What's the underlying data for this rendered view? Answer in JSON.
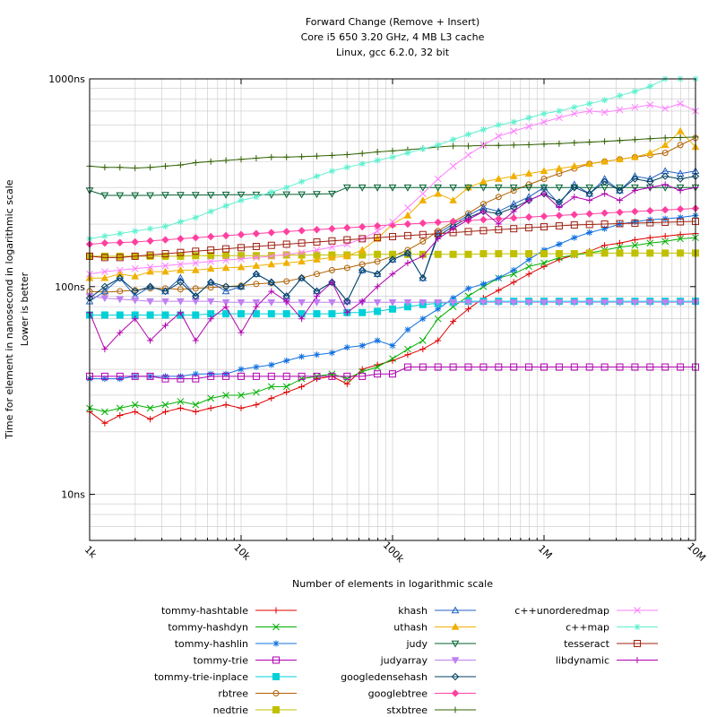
{
  "chart_data": {
    "type": "line",
    "title": [
      "Forward Change (Remove + Insert)",
      "Core i5 650 3.20 GHz, 4 MB L3 cache",
      "Linux, gcc 6.2.0, 32 bit"
    ],
    "xlabel": "Number of elements in logarithmic scale",
    "ylabel_lines": [
      "Time for element in nanosecond in logarithmic scale",
      "Lower is better"
    ],
    "x_scale": "log",
    "y_scale": "log",
    "xlim": [
      1000,
      10000000
    ],
    "ylim": [
      6,
      1000
    ],
    "x_ticks": [
      {
        "value": 1000,
        "label": "1k"
      },
      {
        "value": 10000,
        "label": "10k"
      },
      {
        "value": 100000,
        "label": "100k"
      },
      {
        "value": 1000000,
        "label": "1M"
      },
      {
        "value": 10000000,
        "label": "10M"
      }
    ],
    "y_ticks": [
      {
        "value": 10,
        "label": "10ns"
      },
      {
        "value": 100,
        "label": "100ns"
      },
      {
        "value": 1000,
        "label": "1000ns"
      }
    ],
    "grid": true,
    "legend_position": "bottom",
    "x_exponents": [
      3.0,
      3.1,
      3.2,
      3.3,
      3.4,
      3.5,
      3.6,
      3.7,
      3.8,
      3.9,
      4.0,
      4.1,
      4.2,
      4.3,
      4.4,
      4.5,
      4.6,
      4.7,
      4.8,
      4.9,
      5.0,
      5.1,
      5.2,
      5.3,
      5.4,
      5.5,
      5.6,
      5.7,
      5.8,
      5.9,
      6.0,
      6.1,
      6.2,
      6.3,
      6.4,
      6.5,
      6.6,
      6.7,
      6.8,
      6.9,
      7.0
    ],
    "series": [
      {
        "name": "tommy-hashtable",
        "color": "#e00000",
        "marker": "plus",
        "values": [
          25,
          22,
          24,
          25,
          23,
          25,
          26,
          25,
          26,
          27,
          26,
          27,
          29,
          31,
          33,
          36,
          37,
          34,
          40,
          42,
          44,
          47,
          50,
          55,
          68,
          78,
          88,
          96,
          105,
          115,
          125,
          135,
          142,
          148,
          158,
          162,
          168,
          172,
          175,
          178,
          180
        ]
      },
      {
        "name": "tommy-hashdyn",
        "color": "#00b000",
        "marker": "x",
        "values": [
          26,
          25,
          26,
          27,
          26,
          27,
          28,
          27,
          29,
          30,
          30,
          31,
          33,
          33,
          36,
          37,
          38,
          36,
          39,
          41,
          45,
          50,
          55,
          70,
          80,
          90,
          100,
          110,
          115,
          125,
          130,
          138,
          142,
          145,
          150,
          155,
          158,
          162,
          165,
          170,
          172
        ]
      },
      {
        "name": "tommy-hashlin",
        "color": "#1070e0",
        "marker": "star",
        "values": [
          36,
          36,
          36,
          37,
          37,
          37,
          37,
          38,
          38,
          38,
          40,
          41,
          42,
          44,
          46,
          47,
          48,
          51,
          52,
          55,
          52,
          62,
          70,
          78,
          88,
          98,
          103,
          110,
          120,
          135,
          150,
          160,
          172,
          182,
          190,
          200,
          205,
          210,
          212,
          215,
          220
        ]
      },
      {
        "name": "tommy-trie",
        "color": "#b000b0",
        "marker": "square-open",
        "values": [
          37,
          37,
          37,
          37,
          37,
          36,
          36,
          36,
          37,
          37,
          37,
          37,
          37,
          37,
          37,
          37,
          37,
          37,
          37,
          38,
          38,
          41,
          41,
          41,
          41,
          41,
          41,
          41,
          41,
          41,
          41,
          41,
          41,
          41,
          41,
          41,
          41,
          41,
          41,
          41,
          41
        ]
      },
      {
        "name": "tommy-trie-inplace",
        "color": "#00d0d8",
        "marker": "square",
        "values": [
          73,
          73,
          73,
          73,
          73,
          73,
          73,
          73,
          74,
          74,
          74,
          74,
          74,
          74,
          74,
          74,
          74,
          75,
          75,
          76,
          78,
          80,
          82,
          83,
          84,
          85,
          85,
          85,
          85,
          85,
          85,
          85,
          85,
          85,
          85,
          85,
          85,
          85,
          85,
          85,
          85
        ]
      },
      {
        "name": "rbtree",
        "color": "#b06000",
        "marker": "circle-open",
        "values": [
          95,
          94,
          95,
          96,
          98,
          98,
          97,
          98,
          99,
          100,
          101,
          103,
          104,
          106,
          110,
          115,
          120,
          123,
          128,
          132,
          140,
          150,
          165,
          185,
          205,
          225,
          250,
          270,
          290,
          310,
          330,
          350,
          370,
          390,
          400,
          410,
          420,
          430,
          440,
          480,
          520
        ]
      },
      {
        "name": "nedtrie",
        "color": "#c0c000",
        "marker": "square",
        "values": [
          140,
          140,
          140,
          140,
          140,
          140,
          140,
          141,
          141,
          141,
          141,
          141,
          141,
          142,
          142,
          142,
          142,
          142,
          142,
          143,
          143,
          143,
          143,
          143,
          143,
          143,
          144,
          144,
          144,
          144,
          144,
          144,
          144,
          145,
          145,
          145,
          145,
          145,
          145,
          145,
          145
        ]
      },
      {
        "name": "khash",
        "color": "#2060c0",
        "marker": "triangle-open",
        "values": [
          85,
          95,
          110,
          90,
          100,
          95,
          110,
          90,
          105,
          95,
          100,
          115,
          105,
          90,
          110,
          95,
          105,
          85,
          120,
          115,
          135,
          145,
          110,
          180,
          200,
          220,
          240,
          230,
          250,
          270,
          300,
          250,
          310,
          280,
          330,
          290,
          340,
          330,
          360,
          350,
          360
        ]
      },
      {
        "name": "uthash",
        "color": "#f0b000",
        "marker": "triangle",
        "values": [
          110,
          110,
          115,
          112,
          118,
          118,
          120,
          120,
          122,
          123,
          124,
          126,
          128,
          130,
          132,
          135,
          138,
          140,
          150,
          170,
          200,
          220,
          260,
          280,
          260,
          300,
          320,
          330,
          340,
          350,
          360,
          370,
          380,
          390,
          400,
          410,
          420,
          440,
          480,
          560,
          470
        ]
      },
      {
        "name": "judy",
        "color": "#006030",
        "marker": "triangle-down-open",
        "values": [
          290,
          275,
          275,
          275,
          275,
          276,
          276,
          276,
          276,
          277,
          277,
          277,
          277,
          278,
          278,
          279,
          280,
          300,
          300,
          300,
          300,
          300,
          300,
          300,
          300,
          300,
          300,
          300,
          300,
          300,
          300,
          300,
          300,
          300,
          300,
          300,
          300,
          300,
          300,
          300,
          300
        ]
      },
      {
        "name": "judyarray",
        "color": "#c080f0",
        "marker": "triangle-down",
        "values": [
          90,
          88,
          87,
          86,
          85,
          85,
          85,
          85,
          85,
          84,
          84,
          84,
          84,
          84,
          84,
          84,
          84,
          84,
          84,
          84,
          84,
          84,
          84,
          84,
          84,
          84,
          84,
          84,
          84,
          84,
          84,
          84,
          84,
          84,
          84,
          84,
          84,
          84,
          84,
          84,
          84
        ]
      },
      {
        "name": "googledensehash",
        "color": "#004060",
        "marker": "diamond-open",
        "values": [
          88,
          100,
          110,
          95,
          100,
          95,
          105,
          90,
          105,
          100,
          100,
          115,
          105,
          90,
          110,
          95,
          105,
          85,
          120,
          115,
          135,
          145,
          110,
          175,
          195,
          215,
          230,
          225,
          240,
          260,
          280,
          255,
          300,
          280,
          320,
          290,
          330,
          320,
          340,
          330,
          340
        ]
      },
      {
        "name": "googlebtree",
        "color": "#ff40a0",
        "marker": "diamond",
        "values": [
          160,
          162,
          163,
          164,
          166,
          168,
          170,
          172,
          174,
          176,
          178,
          180,
          182,
          184,
          186,
          188,
          190,
          192,
          194,
          196,
          198,
          200,
          202,
          204,
          206,
          208,
          210,
          212,
          214,
          216,
          218,
          220,
          222,
          224,
          226,
          228,
          230,
          232,
          234,
          236,
          238
        ]
      },
      {
        "name": "stxbtree",
        "color": "#306000",
        "marker": "plus",
        "values": [
          380,
          375,
          375,
          372,
          375,
          380,
          385,
          395,
          400,
          405,
          410,
          415,
          420,
          420,
          422,
          425,
          428,
          432,
          438,
          445,
          450,
          456,
          462,
          470,
          475,
          475,
          478,
          478,
          480,
          482,
          485,
          488,
          492,
          496,
          500,
          505,
          510,
          515,
          520,
          522,
          525
        ]
      },
      {
        "name": "c++unorderedmap",
        "color": "#ff80ff",
        "marker": "x",
        "values": [
          115,
          118,
          120,
          122,
          124,
          126,
          128,
          130,
          132,
          134,
          136,
          138,
          140,
          143,
          146,
          150,
          155,
          160,
          170,
          185,
          205,
          240,
          280,
          330,
          380,
          430,
          480,
          530,
          560,
          590,
          620,
          650,
          680,
          700,
          690,
          710,
          730,
          750,
          720,
          760,
          700
        ]
      },
      {
        "name": "c++map",
        "color": "#60f0d0",
        "marker": "star",
        "values": [
          170,
          175,
          180,
          185,
          190,
          195,
          205,
          215,
          230,
          245,
          260,
          270,
          285,
          300,
          320,
          340,
          360,
          375,
          390,
          405,
          420,
          440,
          460,
          480,
          510,
          540,
          570,
          600,
          620,
          650,
          680,
          700,
          730,
          760,
          790,
          830,
          870,
          920,
          1000,
          1000,
          1000
        ]
      },
      {
        "name": "tesseract",
        "color": "#a02010",
        "marker": "square-open",
        "values": [
          140,
          138,
          138,
          140,
          142,
          144,
          146,
          148,
          150,
          152,
          154,
          156,
          158,
          160,
          162,
          164,
          166,
          168,
          170,
          172,
          174,
          176,
          178,
          180,
          182,
          184,
          186,
          188,
          190,
          192,
          194,
          196,
          198,
          199,
          200,
          201,
          202,
          203,
          204,
          205,
          206
        ]
      },
      {
        "name": "libdynamic",
        "color": "#b000b0",
        "marker": "plus",
        "values": [
          75,
          50,
          60,
          70,
          55,
          65,
          75,
          55,
          70,
          80,
          60,
          80,
          95,
          85,
          70,
          90,
          105,
          75,
          85,
          100,
          115,
          130,
          140,
          170,
          190,
          210,
          230,
          200,
          230,
          260,
          280,
          240,
          270,
          260,
          280,
          260,
          290,
          300,
          310,
          290,
          300
        ]
      }
    ]
  }
}
